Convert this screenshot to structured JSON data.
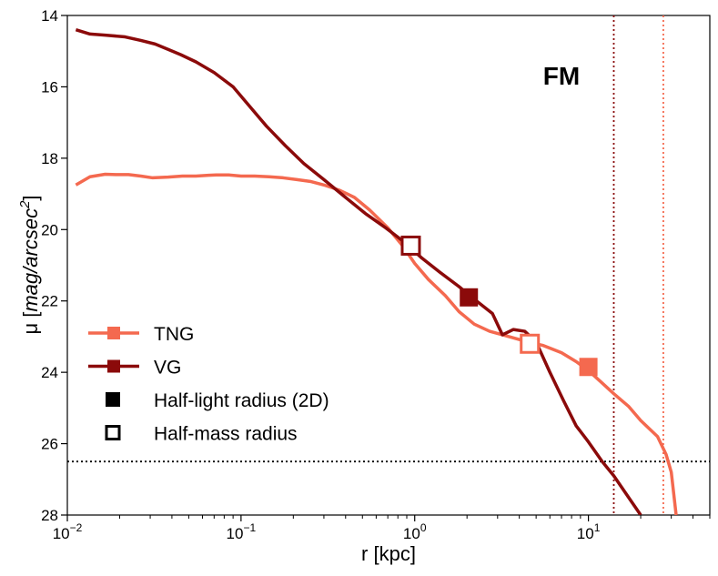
{
  "chart_data": {
    "type": "line",
    "panel_label": "FM",
    "xlabel": "r [kpc]",
    "ylabel_prefix": "μ [",
    "ylabel_math": "mag/arcsec",
    "ylabel_sup": "2",
    "ylabel_suffix": "]",
    "xscale": "log",
    "xlim": [
      0.01,
      50
    ],
    "ylim": [
      28,
      14
    ],
    "x_ticks": [
      {
        "value": 0.01,
        "base": "10",
        "exp": "−2"
      },
      {
        "value": 0.1,
        "base": "10",
        "exp": "−1"
      },
      {
        "value": 1,
        "base": "10",
        "exp": "0"
      },
      {
        "value": 10,
        "base": "10",
        "exp": "1"
      }
    ],
    "y_ticks": [
      "14",
      "16",
      "18",
      "20",
      "22",
      "24",
      "26",
      "28"
    ],
    "series": [
      {
        "name": "TNG",
        "color": "#f4694f",
        "x": [
          0.0112,
          0.0135,
          0.0165,
          0.019,
          0.0225,
          0.0265,
          0.031,
          0.038,
          0.046,
          0.055,
          0.065,
          0.072,
          0.085,
          0.1,
          0.12,
          0.145,
          0.175,
          0.21,
          0.25,
          0.3,
          0.37,
          0.45,
          0.55,
          0.7,
          0.85,
          1.0,
          1.2,
          1.5,
          1.8,
          2.2,
          2.7,
          3.2,
          3.8,
          4.5,
          5.5,
          7.0,
          8.5,
          10.0,
          12.0,
          14.0,
          17.0,
          20.0,
          25.0,
          28.0,
          30.0,
          32.0
        ],
        "y": [
          18.75,
          18.52,
          18.45,
          18.46,
          18.46,
          18.5,
          18.55,
          18.53,
          18.5,
          18.5,
          18.48,
          18.47,
          18.47,
          18.5,
          18.5,
          18.52,
          18.55,
          18.6,
          18.65,
          18.75,
          18.9,
          19.1,
          19.45,
          19.95,
          20.45,
          20.95,
          21.4,
          21.85,
          22.3,
          22.65,
          22.85,
          22.95,
          23.05,
          23.15,
          23.25,
          23.45,
          23.7,
          23.95,
          24.3,
          24.6,
          24.95,
          25.35,
          25.8,
          26.3,
          26.8,
          28.0
        ],
        "half_light_radius_2d": {
          "x": 10.0,
          "y": 23.85
        },
        "half_mass_radius": {
          "x": 4.6,
          "y": 23.2
        },
        "vline_x": 27.0
      },
      {
        "name": "VG",
        "color": "#8b0a0a",
        "x": [
          0.0112,
          0.0135,
          0.0165,
          0.0215,
          0.0265,
          0.032,
          0.038,
          0.045,
          0.055,
          0.07,
          0.09,
          0.11,
          0.14,
          0.18,
          0.23,
          0.3,
          0.4,
          0.52,
          0.68,
          0.87,
          1.1,
          1.4,
          1.8,
          2.2,
          2.8,
          3.2,
          3.7,
          4.3,
          5.0,
          6.0,
          7.2,
          8.5,
          10.0,
          12.0,
          14.0,
          17.0,
          20.0
        ],
        "y": [
          14.4,
          14.52,
          14.55,
          14.6,
          14.7,
          14.8,
          14.95,
          15.1,
          15.3,
          15.6,
          16.0,
          16.5,
          17.1,
          17.65,
          18.15,
          18.6,
          19.1,
          19.55,
          19.95,
          20.35,
          20.8,
          21.2,
          21.6,
          21.95,
          22.35,
          22.95,
          22.8,
          22.85,
          23.15,
          24.0,
          24.8,
          25.5,
          25.95,
          26.5,
          26.9,
          27.5,
          28.0
        ],
        "half_light_radius_2d": {
          "x": 2.05,
          "y": 21.9
        },
        "half_mass_radius": {
          "x": 0.95,
          "y": 20.45
        },
        "vline_x": 14.0
      }
    ],
    "hline_y": 26.5,
    "legend": {
      "placement": "lower-left",
      "entries": [
        {
          "label": "TNG",
          "kind": "line-marker",
          "color": "#f4694f"
        },
        {
          "label": "VG",
          "kind": "line-marker",
          "color": "#8b0a0a"
        },
        {
          "label": "Half-light radius (2D)",
          "kind": "filled-square",
          "color": "#000000"
        },
        {
          "label": "Half-mass radius",
          "kind": "open-square",
          "color": "#000000"
        }
      ]
    }
  }
}
